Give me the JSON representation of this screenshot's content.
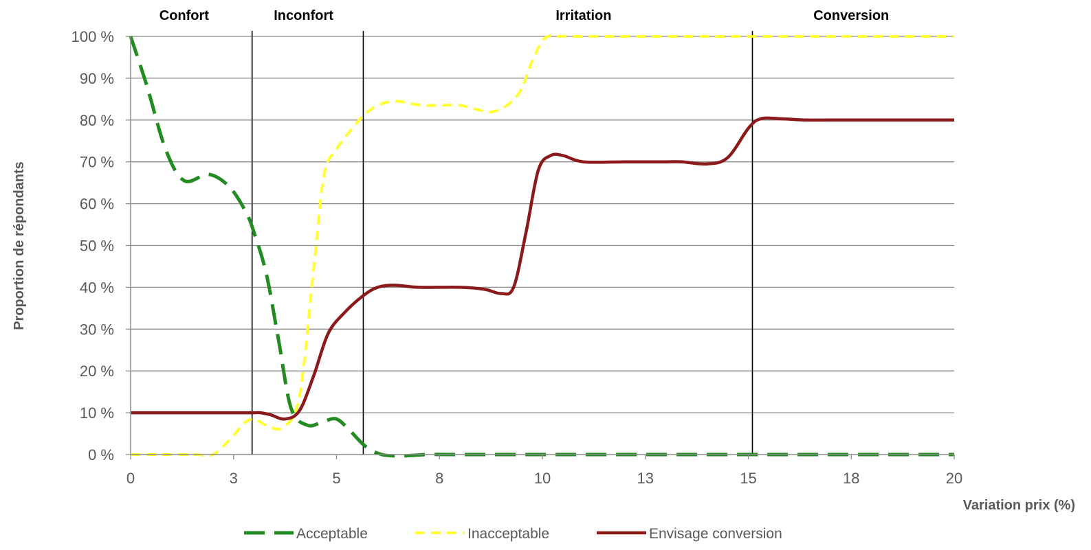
{
  "chart_data": {
    "type": "line",
    "xlabel": "Variation prix (%)",
    "ylabel": "Proportion de répondants",
    "xlim": [
      0,
      20
    ],
    "ylim": [
      0,
      100
    ],
    "x_tick_values": [
      0,
      2.5,
      5,
      7.5,
      10,
      12.5,
      15,
      17.5,
      20
    ],
    "x_tick_labels": [
      "0",
      "3",
      "5",
      "8",
      "10",
      "13",
      "15",
      "18",
      "20"
    ],
    "y_tick_values": [
      0,
      10,
      20,
      30,
      40,
      50,
      60,
      70,
      80,
      90,
      100
    ],
    "y_tick_labels": [
      "0 %",
      "10 %",
      "20 %",
      "30 %",
      "40 %",
      "50 %",
      "60 %",
      "70 %",
      "80 %",
      "90 %",
      "100 %"
    ],
    "grid": true,
    "zones": [
      {
        "label": "Confort",
        "x_center": 1.3
      },
      {
        "label": "Inconfort",
        "x_center": 4.2
      },
      {
        "label": "Irritation",
        "x_center": 11.0
      },
      {
        "label": "Conversion",
        "x_center": 17.5
      }
    ],
    "vlines": [
      2.95,
      5.65,
      15.1
    ],
    "legend_position": "bottom",
    "series": [
      {
        "name": "Acceptable",
        "color": "#238b21",
        "style": "long-dash",
        "x": [
          0,
          0.4,
          0.85,
          1.3,
          1.9,
          2.4,
          2.8,
          3.0,
          3.3,
          3.6,
          3.9,
          4.3,
          4.7,
          5.0,
          5.3,
          5.7,
          6.1,
          6.6,
          7.2,
          8,
          10,
          12,
          14,
          16,
          18,
          20
        ],
        "values": [
          100,
          88,
          73,
          65.5,
          67,
          64,
          58,
          53,
          43,
          27,
          11,
          7,
          8,
          8.5,
          6,
          2,
          0,
          -0.3,
          0,
          0,
          0,
          0,
          0,
          0,
          0,
          0
        ]
      },
      {
        "name": "Inacceptable",
        "color": "#ffff33",
        "style": "short-dash",
        "x": [
          0,
          0.6,
          1.2,
          1.6,
          2.0,
          2.45,
          2.75,
          3.0,
          3.3,
          3.7,
          4.1,
          4.45,
          4.7,
          5.0,
          5.3,
          5.65,
          6.0,
          6.45,
          7.1,
          8.0,
          8.8,
          9.4,
          9.75,
          10.05,
          10.4,
          11.0,
          12,
          14,
          16,
          18,
          20
        ],
        "values": [
          0,
          0,
          0,
          0,
          0,
          4,
          7.5,
          8.5,
          7,
          6.5,
          14,
          45,
          67,
          73,
          77,
          81,
          83.5,
          84.5,
          83.5,
          83.5,
          82,
          86,
          94,
          99.5,
          100,
          100,
          100,
          100,
          100,
          100,
          100
        ]
      },
      {
        "name": "Envisage conversion",
        "color": "#8b1a1a",
        "style": "solid",
        "x": [
          0,
          1.0,
          2.0,
          2.5,
          3.0,
          3.15,
          3.4,
          3.75,
          4.1,
          4.45,
          4.8,
          5.2,
          5.65,
          6.0,
          6.4,
          7.0,
          8.0,
          8.6,
          9.0,
          9.3,
          9.6,
          9.9,
          10.2,
          10.5,
          11.0,
          12.0,
          13.0,
          13.4,
          14.0,
          14.5,
          15.0,
          15.3,
          15.8,
          16.4,
          17,
          18,
          19,
          20
        ],
        "values": [
          10,
          10,
          10,
          10,
          10,
          10,
          9.5,
          8.5,
          10.5,
          19,
          29,
          34,
          38,
          40,
          40.5,
          40,
          40,
          39.5,
          38.5,
          40,
          53,
          68,
          71.5,
          71.5,
          70,
          70,
          70,
          70,
          69.5,
          71,
          78,
          80.3,
          80.3,
          80,
          80,
          80,
          80,
          80
        ]
      }
    ]
  }
}
